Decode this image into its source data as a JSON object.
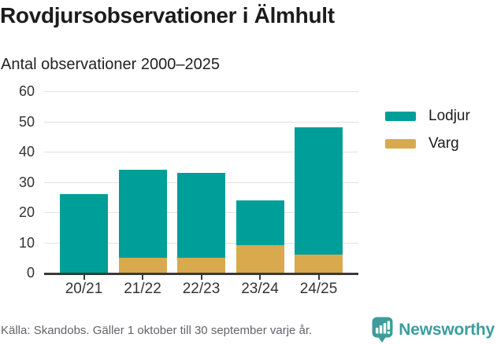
{
  "header": {
    "title": "Rovdjursobservationer i Älmhult",
    "subtitle": "Antal observationer 2000–2025"
  },
  "chart_data": {
    "type": "bar",
    "stacked": true,
    "categories": [
      "20/21",
      "21/22",
      "22/23",
      "23/24",
      "24/25"
    ],
    "series": [
      {
        "name": "Lodjur",
        "color": "#009E98",
        "values": [
          26,
          29,
          28,
          15,
          42
        ]
      },
      {
        "name": "Varg",
        "color": "#D9A94E",
        "values": [
          0,
          5,
          5,
          9,
          6
        ]
      }
    ],
    "stack_bottom_to_top": [
      "Varg",
      "Lodjur"
    ],
    "stack_totals": [
      26,
      34,
      33,
      24,
      48
    ],
    "title": "Rovdjursobservationer i Älmhult",
    "subtitle": "Antal observationer 2000–2025",
    "xlabel": "",
    "ylabel": "",
    "ylim": [
      0,
      60
    ],
    "yticks": [
      0,
      10,
      20,
      30,
      40,
      50,
      60
    ],
    "grid": true,
    "legend_position": "right",
    "gridline_color": "#E2E2E2",
    "axis_color": "#3A3A3A",
    "tick_label_color": "#333333"
  },
  "footer": {
    "source": "Källa: Skandobs. Gäller 1 oktober till 30 september varje år.",
    "brand": "Newsworthy",
    "brand_color": "#3E9C9C",
    "brand_icon": "newsworthy-speech-bubble-bar-chart-icon"
  }
}
